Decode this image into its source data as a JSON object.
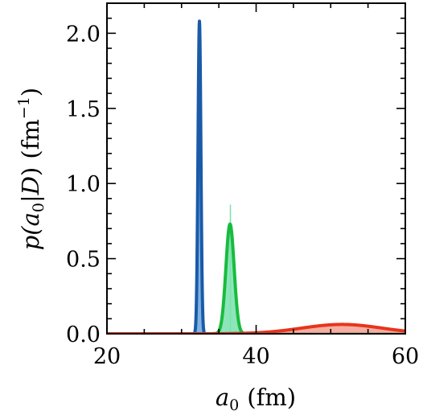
{
  "chart_data": {
    "type": "area",
    "title": "",
    "xlabel": {
      "base": "a",
      "sub": "0",
      "unit": "(fm)"
    },
    "ylabel": {
      "pre": "p(",
      "var": "a",
      "sub": "0",
      "mid": "|",
      "cond": "D",
      "post": ")",
      "unit_base": "(fm",
      "unit_sup": "−1",
      "unit_close": ")"
    },
    "xlim": [
      20,
      60
    ],
    "ylim": [
      0,
      2.2
    ],
    "xticks": [
      20,
      40,
      60
    ],
    "xtick_labels": [
      "20",
      "40",
      "60"
    ],
    "yticks": [
      0.0,
      0.5,
      1.0,
      1.5,
      2.0
    ],
    "ytick_labels": [
      "0.0",
      "0.5",
      "1.0",
      "1.5",
      "2.0"
    ],
    "grid": false,
    "series": [
      {
        "shape": "gaussian",
        "mean": 32.4,
        "sd": 0.19,
        "peak": 2.08,
        "line_color": "#1a5aa8",
        "fill_color": "#6aa6dc"
      },
      {
        "shape": "gaussian",
        "mean": 36.5,
        "sd": 0.55,
        "peak": 0.73,
        "spike_at": 36.55,
        "spike_peak": 0.86,
        "line_color": "#19bb3e",
        "fill_color": "#79e2ad"
      },
      {
        "shape": "gaussian",
        "mean": 51.5,
        "sd": 5.4,
        "peak": 0.062,
        "line_color": "#e8341c",
        "fill_color": "#f3a090"
      }
    ]
  }
}
